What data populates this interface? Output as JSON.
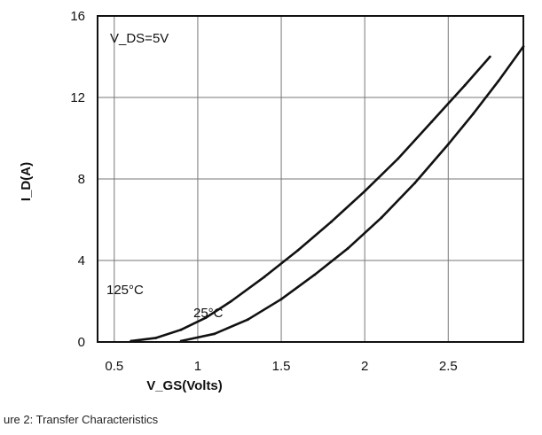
{
  "chart_data": {
    "type": "line",
    "title": "",
    "annotation": "V_DS=5V",
    "xlabel": "V_GS(Volts)",
    "ylabel": "I_D(A)",
    "xlim": [
      0.4,
      2.95
    ],
    "ylim": [
      0,
      16
    ],
    "x_ticks": [
      "0.5",
      "1",
      "1.5",
      "2",
      "2.5"
    ],
    "y_ticks": [
      "0",
      "4",
      "8",
      "12",
      "16"
    ],
    "grid": true,
    "series": [
      {
        "name": "125°C",
        "x": [
          0.6,
          0.75,
          0.9,
          1.05,
          1.2,
          1.4,
          1.6,
          1.8,
          2.0,
          2.2,
          2.4,
          2.6,
          2.75
        ],
        "y": [
          0.05,
          0.2,
          0.6,
          1.2,
          2.0,
          3.2,
          4.5,
          5.9,
          7.4,
          9.0,
          10.8,
          12.6,
          14.0
        ]
      },
      {
        "name": "25°C",
        "x": [
          0.9,
          1.1,
          1.3,
          1.5,
          1.7,
          1.9,
          2.1,
          2.3,
          2.5,
          2.65,
          2.8,
          2.95
        ],
        "y": [
          0.05,
          0.4,
          1.1,
          2.1,
          3.3,
          4.6,
          6.1,
          7.8,
          9.7,
          11.2,
          12.8,
          14.5
        ]
      }
    ],
    "series_labels": [
      "125°C",
      "25°C"
    ]
  },
  "caption": "ure 2: Transfer Characteristics"
}
